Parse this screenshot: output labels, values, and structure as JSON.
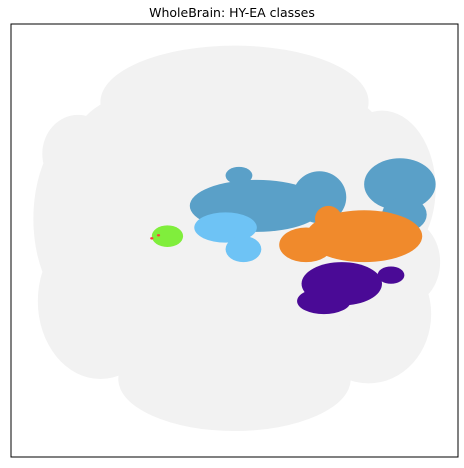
{
  "chart_data": {
    "type": "scatter",
    "title": "WholeBrain: HY-EA classes",
    "xlabel": "",
    "ylabel": "",
    "xlim": [
      0,
      100
    ],
    "ylim": [
      0,
      100
    ],
    "axis_ticks": "none",
    "grid": false,
    "legend": "none",
    "colors": {
      "background_cells": "#f2f2f2",
      "steel_blue_class": "#5aa0c8",
      "light_blue_class": "#6ec3f5",
      "orange_class": "#f08a2c",
      "purple_class": "#4a0a96",
      "green_class": "#80ee3c",
      "red_spot": "#ff3b3b"
    },
    "series": [
      {
        "color_key": "background_cells",
        "style": "blob",
        "points": [
          [
            50,
            50,
            42,
            38
          ],
          [
            50,
            18,
            30,
            13
          ],
          [
            17,
            45,
            12,
            22
          ],
          [
            20,
            64,
            14,
            18
          ],
          [
            50,
            82,
            26,
            12
          ],
          [
            83,
            38,
            12,
            18
          ],
          [
            80,
            67,
            14,
            16
          ],
          [
            30,
            28,
            16,
            12
          ],
          [
            70,
            28,
            14,
            12
          ],
          [
            35,
            73,
            14,
            12
          ],
          [
            65,
            76,
            14,
            10
          ],
          [
            15,
            30,
            8,
            9
          ],
          [
            88,
            55,
            8,
            10
          ],
          [
            62,
            55,
            10,
            10
          ],
          [
            30,
            55,
            12,
            12
          ]
        ]
      },
      {
        "color_key": "steel_blue_class",
        "style": "blob",
        "points": [
          [
            55,
            42,
            15,
            6
          ],
          [
            69,
            40,
            6,
            6
          ],
          [
            87,
            37,
            8,
            6
          ],
          [
            88,
            44,
            5,
            4
          ],
          [
            51,
            35,
            3,
            2
          ]
        ]
      },
      {
        "color_key": "light_blue_class",
        "style": "blob",
        "points": [
          [
            48,
            47,
            7,
            3.5
          ],
          [
            52,
            52,
            4,
            3
          ]
        ]
      },
      {
        "color_key": "orange_class",
        "style": "blob",
        "points": [
          [
            66,
            51,
            6,
            4
          ],
          [
            79,
            49,
            13,
            6
          ],
          [
            71,
            45,
            3,
            3
          ]
        ]
      },
      {
        "color_key": "purple_class",
        "style": "blob",
        "points": [
          [
            74,
            60,
            9,
            5
          ],
          [
            70,
            64,
            6,
            3
          ],
          [
            85,
            58,
            3,
            2
          ]
        ]
      },
      {
        "color_key": "green_class",
        "style": "blob",
        "points": [
          [
            35,
            49,
            3.5,
            2.5
          ]
        ]
      },
      {
        "color_key": "red_spot",
        "style": "point",
        "points": [
          [
            31.5,
            49.5
          ],
          [
            33,
            48.8
          ]
        ]
      }
    ]
  }
}
